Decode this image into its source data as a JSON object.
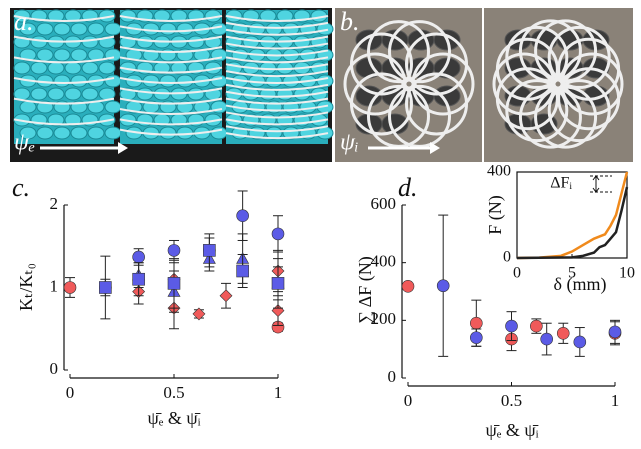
{
  "photos": {
    "a": {
      "label": "a.",
      "param": "ψₑ"
    },
    "b": {
      "label": "b.",
      "param": "ψᵢ"
    }
  },
  "chart_data": [
    {
      "type": "scatter",
      "label": "c.",
      "y_label": "Kₜ/Kₜ₀",
      "x_label": "ψ̄ₑ & ψ̄ᵢ",
      "xlim": [
        0,
        1
      ],
      "xticks": [
        0,
        0.5,
        1
      ],
      "ylim": [
        0,
        2
      ],
      "yticks": [
        0,
        1,
        2
      ],
      "series": [
        {
          "color": "#f05a5a",
          "marker": "circle",
          "x": [
            0,
            1
          ],
          "values": [
            1.0,
            0.52
          ],
          "errors": [
            0.12,
            0.05
          ]
        },
        {
          "color": "#f05a5a",
          "marker": "diamond",
          "x": [
            0.33,
            0.5,
            0.5,
            0.62,
            0.75,
            1,
            1
          ],
          "values": [
            0.95,
            0.75,
            1.1,
            0.68,
            0.9,
            0.72,
            1.2
          ],
          "errors": [
            0.15,
            0.25,
            0.2,
            0.05,
            0.15,
            0.18,
            0.25
          ]
        },
        {
          "color": "#5b5be6",
          "marker": "circle",
          "x": [
            0.17,
            0.33,
            0.5,
            0.67,
            0.83,
            1
          ],
          "values": [
            1.0,
            1.37,
            1.45,
            1.45,
            1.87,
            1.65
          ],
          "errors": [
            0.1,
            0.1,
            0.12,
            0.15,
            0.3,
            0.22
          ]
        },
        {
          "color": "#5b5be6",
          "marker": "triangle",
          "x": [
            0.33,
            0.5,
            0.67,
            0.83,
            1
          ],
          "values": [
            1.15,
            0.95,
            1.35,
            1.35,
            1.05
          ],
          "errors": [
            0.15,
            0.25,
            0.15,
            0.3,
            0.2
          ]
        },
        {
          "color": "#5b5be6",
          "marker": "square",
          "x": [
            0.17,
            0.33,
            0.5,
            0.67,
            0.83,
            1
          ],
          "values": [
            1.0,
            1.1,
            1.05,
            1.45,
            1.2,
            1.05
          ],
          "errors": [
            0.38,
            0.2,
            0.3,
            0.2,
            0.2,
            0.3
          ]
        }
      ]
    },
    {
      "type": "scatter",
      "label": "d.",
      "y_label": "∑ ΔF (N)",
      "x_label": "ψ̄ₑ & ψ̄ᵢ",
      "xlim": [
        0,
        1
      ],
      "xticks": [
        0,
        0.5,
        1
      ],
      "ylim": [
        0,
        600
      ],
      "yticks": [
        0,
        200,
        400,
        600
      ],
      "series": [
        {
          "color": "#f05a5a",
          "marker": "circle",
          "x": [
            0,
            0.33,
            0.5,
            0.62,
            0.75,
            1
          ],
          "values": [
            318,
            190,
            135,
            180,
            155,
            155
          ],
          "errors": [
            0,
            80,
            40,
            25,
            35,
            40
          ]
        },
        {
          "color": "#5b5be6",
          "marker": "circle",
          "x": [
            0.17,
            0.33,
            0.5,
            0.67,
            0.83,
            1
          ],
          "values": [
            320,
            140,
            180,
            135,
            125,
            160
          ],
          "errors": [
            245,
            30,
            50,
            55,
            50,
            40
          ]
        }
      ]
    },
    {
      "type": "line",
      "y_label": "F (N)",
      "x_label": "δ (mm)",
      "annotation": "ΔFᵢ",
      "xlim": [
        0,
        10
      ],
      "xticks": [
        0,
        5,
        10
      ],
      "ylim": [
        0,
        400
      ],
      "yticks": [
        0,
        400
      ],
      "series": [
        {
          "color": "#f08a1c",
          "x": [
            0,
            2,
            4,
            5,
            6,
            7,
            8,
            8.5,
            9,
            9.5,
            10
          ],
          "values": [
            0,
            2,
            10,
            30,
            60,
            90,
            110,
            150,
            200,
            300,
            400
          ]
        },
        {
          "color": "#222222",
          "x": [
            0,
            5,
            6,
            7,
            7.5,
            8,
            8.5,
            9,
            9.5,
            10
          ],
          "values": [
            0,
            3,
            10,
            25,
            50,
            60,
            90,
            120,
            220,
            330
          ]
        }
      ]
    }
  ]
}
